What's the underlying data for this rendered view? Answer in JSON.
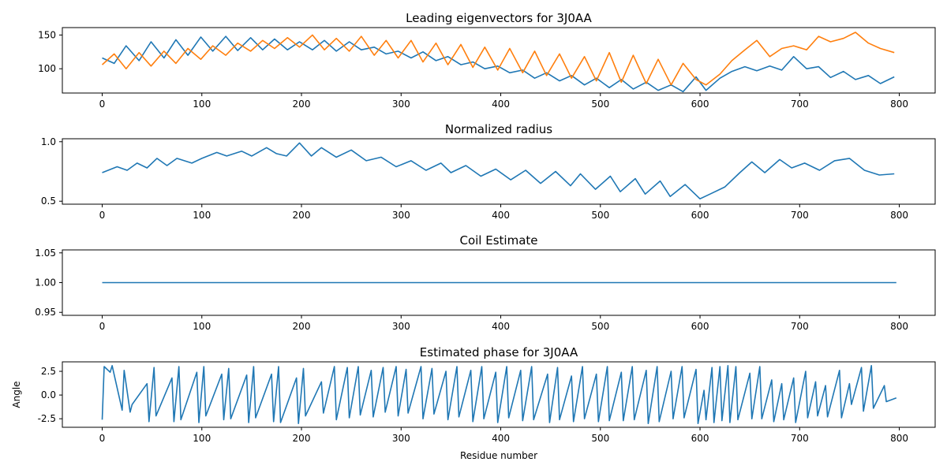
{
  "figure": {
    "colors": {
      "series1": "#1f77b4",
      "series2": "#ff7f0e",
      "axis": "#000000",
      "background": "#ffffff"
    }
  },
  "chart_data": [
    {
      "type": "line",
      "title": "Leading eigenvectors for 3J0AA",
      "xlabel": "",
      "ylabel": "",
      "xlim": [
        -40,
        836
      ],
      "ylim": [
        64,
        161
      ],
      "xticks": [
        0,
        100,
        200,
        300,
        400,
        500,
        600,
        700,
        800
      ],
      "yticks": [
        100,
        150
      ],
      "grid": false,
      "legend": "none",
      "series": [
        {
          "color": "#1f77b4",
          "x": [
            0,
            12,
            24,
            37,
            49,
            62,
            74,
            86,
            99,
            111,
            124,
            136,
            149,
            161,
            173,
            186,
            198,
            211,
            223,
            235,
            248,
            260,
            273,
            285,
            297,
            310,
            322,
            335,
            347,
            360,
            372,
            384,
            397,
            409,
            422,
            434,
            446,
            459,
            471,
            484,
            496,
            509,
            521,
            533,
            546,
            558,
            571,
            583,
            596,
            606,
            620,
            632,
            645,
            657,
            670,
            682,
            694,
            707,
            719,
            731,
            744,
            756,
            769,
            781,
            795
          ],
          "values": [
            116,
            108,
            134,
            112,
            140,
            116,
            143,
            120,
            147,
            126,
            148,
            127,
            146,
            128,
            144,
            128,
            140,
            128,
            142,
            126,
            140,
            128,
            132,
            122,
            126,
            116,
            125,
            112,
            118,
            106,
            110,
            100,
            104,
            94,
            98,
            86,
            94,
            82,
            90,
            76,
            86,
            72,
            84,
            70,
            80,
            68,
            76,
            66,
            88,
            68,
            86,
            96,
            103,
            97,
            104,
            98,
            118,
            100,
            103,
            87,
            96,
            84,
            90,
            78,
            88
          ]
        },
        {
          "color": "#ff7f0e",
          "x": [
            0,
            12,
            24,
            37,
            49,
            62,
            74,
            86,
            99,
            111,
            124,
            136,
            149,
            161,
            173,
            186,
            198,
            211,
            223,
            235,
            248,
            260,
            273,
            285,
            297,
            310,
            322,
            335,
            347,
            360,
            372,
            384,
            397,
            409,
            422,
            434,
            446,
            459,
            471,
            484,
            496,
            509,
            521,
            533,
            546,
            558,
            571,
            583,
            596,
            606,
            620,
            632,
            645,
            657,
            670,
            682,
            694,
            707,
            719,
            731,
            744,
            756,
            769,
            781,
            795
          ],
          "values": [
            106,
            122,
            100,
            124,
            104,
            126,
            108,
            130,
            114,
            134,
            120,
            138,
            126,
            142,
            130,
            146,
            132,
            150,
            128,
            145,
            126,
            148,
            120,
            142,
            116,
            142,
            110,
            138,
            106,
            136,
            102,
            132,
            98,
            130,
            94,
            126,
            90,
            122,
            86,
            118,
            82,
            124,
            80,
            120,
            78,
            114,
            76,
            108,
            84,
            76,
            92,
            112,
            128,
            142,
            118,
            130,
            134,
            128,
            148,
            140,
            145,
            154,
            138,
            130,
            124
          ]
        }
      ]
    },
    {
      "type": "line",
      "title": "Normalized radius",
      "xlabel": "",
      "ylabel": "",
      "xlim": [
        -40,
        836
      ],
      "ylim": [
        0.475,
        1.025
      ],
      "xticks": [
        0,
        100,
        200,
        300,
        400,
        500,
        600,
        700,
        800
      ],
      "yticks": [
        0.5,
        1.0
      ],
      "grid": false,
      "legend": "none",
      "series": [
        {
          "color": "#1f77b4",
          "x": [
            0,
            15,
            25,
            35,
            45,
            55,
            65,
            75,
            90,
            100,
            115,
            125,
            140,
            150,
            165,
            175,
            185,
            198,
            210,
            220,
            235,
            250,
            265,
            280,
            295,
            310,
            325,
            340,
            350,
            365,
            380,
            395,
            410,
            425,
            440,
            455,
            470,
            480,
            495,
            510,
            520,
            535,
            545,
            560,
            570,
            585,
            600,
            610,
            625,
            640,
            652,
            665,
            680,
            692,
            705,
            720,
            735,
            750,
            765,
            780,
            795
          ],
          "values": [
            0.74,
            0.79,
            0.76,
            0.82,
            0.78,
            0.86,
            0.8,
            0.86,
            0.82,
            0.86,
            0.91,
            0.88,
            0.92,
            0.88,
            0.95,
            0.9,
            0.88,
            0.99,
            0.88,
            0.95,
            0.87,
            0.93,
            0.84,
            0.87,
            0.79,
            0.84,
            0.76,
            0.82,
            0.74,
            0.8,
            0.71,
            0.77,
            0.68,
            0.76,
            0.65,
            0.75,
            0.63,
            0.73,
            0.6,
            0.71,
            0.58,
            0.69,
            0.56,
            0.67,
            0.54,
            0.64,
            0.52,
            0.56,
            0.62,
            0.74,
            0.83,
            0.74,
            0.85,
            0.78,
            0.82,
            0.76,
            0.84,
            0.86,
            0.76,
            0.72,
            0.73
          ]
        }
      ]
    },
    {
      "type": "line",
      "title": "Coil Estimate",
      "xlabel": "",
      "ylabel": "",
      "xlim": [
        -40,
        836
      ],
      "ylim": [
        0.945,
        1.055
      ],
      "xticks": [
        0,
        100,
        200,
        300,
        400,
        500,
        600,
        700,
        800
      ],
      "yticks": [
        0.95,
        1.0,
        1.05
      ],
      "grid": false,
      "legend": "none",
      "series": [
        {
          "color": "#1f77b4",
          "x": [
            0,
            797
          ],
          "values": [
            1.0,
            1.0
          ]
        }
      ]
    },
    {
      "type": "line",
      "title": "Estimated phase for 3J0AA",
      "xlabel": "Residue number",
      "ylabel": "Angle",
      "xlim": [
        -40,
        836
      ],
      "ylim": [
        -3.4,
        3.5
      ],
      "xticks": [
        0,
        100,
        200,
        300,
        400,
        500,
        600,
        700,
        800
      ],
      "yticks": [
        -2.5,
        0.0,
        2.5
      ],
      "grid": false,
      "legend": "none",
      "series": [
        {
          "color": "#1f77b4",
          "x": [
            0,
            2,
            8,
            10,
            20,
            22,
            28,
            30,
            45,
            47,
            52,
            54,
            70,
            72,
            77,
            79,
            95,
            97,
            102,
            104,
            120,
            122,
            127,
            129,
            145,
            147,
            152,
            154,
            170,
            172,
            177,
            179,
            195,
            197,
            202,
            204,
            220,
            222,
            233,
            235,
            246,
            248,
            257,
            259,
            270,
            272,
            282,
            284,
            295,
            297,
            305,
            307,
            320,
            322,
            331,
            333,
            345,
            347,
            356,
            358,
            370,
            372,
            381,
            383,
            395,
            397,
            406,
            408,
            420,
            422,
            431,
            433,
            447,
            449,
            457,
            459,
            471,
            473,
            482,
            484,
            496,
            498,
            507,
            509,
            521,
            523,
            532,
            534,
            546,
            548,
            557,
            559,
            571,
            573,
            582,
            584,
            596,
            598,
            604,
            606,
            612,
            614,
            620,
            622,
            628,
            630,
            636,
            638,
            650,
            652,
            660,
            662,
            672,
            674,
            682,
            684,
            694,
            696,
            706,
            708,
            716,
            718,
            726,
            728,
            740,
            742,
            750,
            752,
            762,
            764,
            772,
            774,
            785,
            787,
            797
          ],
          "values": [
            -2.6,
            3.0,
            2.4,
            3.1,
            -1.6,
            2.6,
            -1.8,
            -1.0,
            1.2,
            -2.8,
            2.9,
            -2.2,
            1.8,
            -2.8,
            3.0,
            -2.6,
            2.4,
            -2.9,
            3.0,
            -2.2,
            2.2,
            -2.6,
            2.8,
            -2.5,
            2.1,
            -2.9,
            3.0,
            -2.4,
            2.2,
            -2.8,
            3.0,
            -2.9,
            1.8,
            -3.0,
            2.8,
            -2.2,
            1.4,
            -1.9,
            3.0,
            -2.6,
            2.9,
            -2.4,
            3.0,
            -2.1,
            2.6,
            -2.3,
            2.9,
            -1.8,
            3.0,
            -2.2,
            2.7,
            -1.9,
            3.0,
            -2.5,
            2.8,
            -2.0,
            2.5,
            -2.6,
            3.0,
            -2.3,
            2.6,
            -2.8,
            3.0,
            -2.5,
            2.4,
            -2.9,
            3.0,
            -2.4,
            2.6,
            -2.7,
            3.0,
            -2.6,
            2.2,
            -2.9,
            2.9,
            -2.6,
            2.0,
            -2.8,
            3.0,
            -2.5,
            2.2,
            -2.8,
            3.0,
            -2.7,
            2.4,
            -2.7,
            3.0,
            -2.6,
            2.6,
            -3.0,
            3.0,
            -2.8,
            2.5,
            -2.5,
            3.0,
            -2.4,
            2.7,
            -3.0,
            0.5,
            -2.6,
            2.9,
            -2.9,
            3.0,
            -2.7,
            3.1,
            -2.9,
            3.0,
            -2.6,
            2.3,
            -2.5,
            3.0,
            -2.5,
            1.6,
            -2.8,
            1.2,
            -2.6,
            1.8,
            -2.9,
            2.5,
            -2.4,
            1.4,
            -2.2,
            1.0,
            -2.3,
            2.6,
            -2.4,
            1.2,
            -1.0,
            2.9,
            -1.7,
            3.1,
            -1.4,
            1.0,
            -0.7,
            -0.3
          ]
        }
      ]
    }
  ]
}
